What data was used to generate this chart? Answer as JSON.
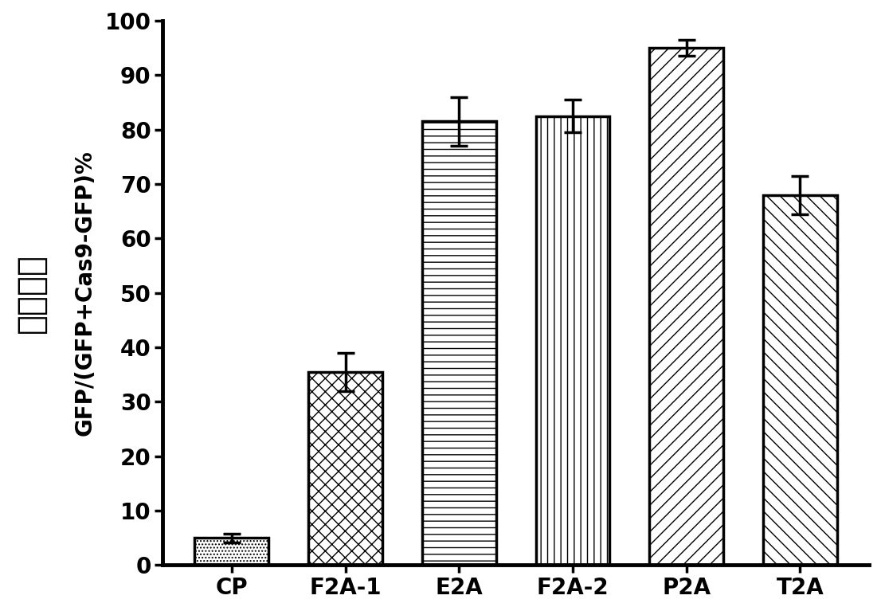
{
  "categories": [
    "CP",
    "F2A-1",
    "E2A",
    "F2A-2",
    "P2A",
    "T2A"
  ],
  "values": [
    5.0,
    35.5,
    81.5,
    82.5,
    95.0,
    68.0
  ],
  "errors": [
    0.8,
    3.5,
    4.5,
    3.0,
    1.5,
    3.5
  ],
  "ylabel_main": "GFP/(GFP+Cas9-GFP)%",
  "ylabel_chinese": "切割效率",
  "ylim": [
    0,
    100
  ],
  "yticks": [
    0,
    10,
    20,
    30,
    40,
    50,
    60,
    70,
    80,
    90,
    100
  ],
  "background_color": "#ffffff",
  "hatch_patterns": [
    "....",
    "xxxx",
    "----",
    "||||",
    "////",
    "\\\\\\\\"
  ],
  "label_fontsize": 20,
  "tick_fontsize": 20,
  "bar_width": 0.65,
  "figure_width": 11.06,
  "figure_height": 7.67,
  "dpi": 100,
  "spine_linewidth": 3.5,
  "bar_linewidth": 2.5,
  "errorbar_linewidth": 2.5,
  "errorbar_capsize": 8,
  "errorbar_capthick": 2.5
}
